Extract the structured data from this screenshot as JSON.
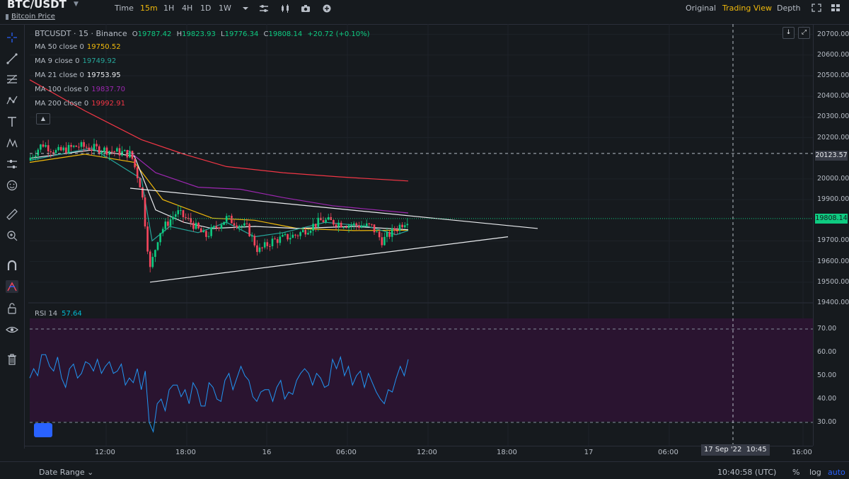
{
  "header": {
    "pair": "BTC/USDT",
    "subtitle": "Bitcoin Price",
    "timeframes": [
      "Time",
      "15m",
      "1H",
      "4H",
      "1D",
      "1W"
    ],
    "active_timeframe": "15m",
    "icons": [
      "chevron-down-icon",
      "indicator-settings-icon",
      "candle-type-icon",
      "screenshot-icon",
      "add-icon"
    ],
    "views": [
      "Original",
      "Trading View",
      "Depth"
    ],
    "active_view": "Trading View",
    "view_icons": [
      "expand-icon",
      "layout-icon"
    ]
  },
  "legend": {
    "symbol": "BTCUSDT · 15 · Binance",
    "ohlc": [
      {
        "k": "O",
        "v": "19787.42"
      },
      {
        "k": "H",
        "v": "19823.93"
      },
      {
        "k": "L",
        "v": "19776.34"
      },
      {
        "k": "C",
        "v": "19808.14"
      }
    ],
    "change": "+20.72 (+0.10%)",
    "indicators": [
      {
        "label": "MA 50 close 0",
        "value": "19750.52",
        "color": "#f0b90b"
      },
      {
        "label": "MA 9 close 0",
        "value": "19749.92",
        "color": "#26a69a"
      },
      {
        "label": "MA 21 close 0",
        "value": "19753.95",
        "color": "#eaecef"
      },
      {
        "label": "MA 100 close 0",
        "value": "19837.70",
        "color": "#9c27b0"
      },
      {
        "label": "MA 200 close 0",
        "value": "19992.91",
        "color": "#f23645"
      }
    ],
    "rsi_label": "RSI 14",
    "rsi_value": "57.64"
  },
  "price_axis": {
    "ticks": [
      "20700.00",
      "20600.00",
      "20500.00",
      "20400.00",
      "20300.00",
      "20200.00",
      "20000.00",
      "19900.00",
      "19700.00",
      "19600.00",
      "19500.00",
      "19400.00"
    ],
    "crosshair_price": "20123.57",
    "last_price": "19808.14",
    "rsi_ticks": [
      "70.00",
      "60.00",
      "50.00",
      "40.00",
      "30.00"
    ]
  },
  "time_axis": {
    "ticks": [
      "12:00",
      "18:00",
      "16",
      "06:00",
      "12:00",
      "18:00",
      "17",
      "06:00",
      "16:00"
    ],
    "crosshair_date": "17 Sep '22",
    "crosshair_time": "10:45"
  },
  "footer": {
    "date_range": "Date Range",
    "clock": "10:40:58 (UTC)",
    "options": [
      "%",
      "log",
      "auto"
    ]
  },
  "colors": {
    "background": "#161a1e",
    "up": "#0ecb81",
    "down": "#f6465d",
    "accent": "#f0b90b",
    "rsi_line": "#2196f3",
    "rsi_band": "#2a1430"
  },
  "chart_data": {
    "type": "candlestick",
    "ylim": [
      19400,
      20750
    ],
    "rsi_ylim": [
      20,
      80
    ],
    "rsi": [
      49,
      53,
      50,
      59,
      59,
      54,
      52,
      58,
      49,
      45,
      53,
      55,
      49,
      51,
      56,
      55,
      52,
      57,
      51,
      54,
      56,
      51,
      52,
      55,
      46,
      49,
      47,
      53,
      44,
      52,
      30,
      26,
      38,
      40,
      35,
      44,
      46,
      46,
      41,
      44,
      38,
      47,
      44,
      37,
      37,
      47,
      45,
      40,
      39,
      48,
      51,
      44,
      49,
      54,
      50,
      48,
      41,
      39,
      43,
      44,
      44,
      39,
      45,
      48,
      40,
      43,
      42,
      48,
      51,
      53,
      51,
      46,
      51,
      49,
      45,
      46,
      57,
      53,
      58,
      50,
      54,
      46,
      50,
      52,
      45,
      51,
      47,
      43,
      40,
      38,
      44,
      43,
      49,
      54,
      50,
      57
    ]
  }
}
